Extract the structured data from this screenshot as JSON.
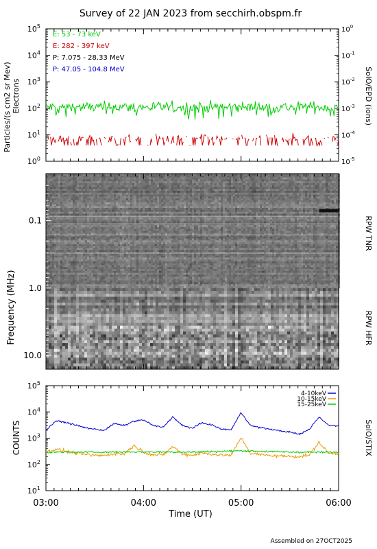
{
  "title": "Survey of 22 JAN 2023 from secchirh.obspm.fr",
  "footer": "Assembled on 27OCT2025",
  "time_axis": {
    "label": "Time (UT)",
    "ticks": [
      "03:00",
      "04:00",
      "05:00",
      "06:00"
    ],
    "range_hours": [
      3,
      6
    ]
  },
  "colors": {
    "green": "#00cc00",
    "red": "#cc0000",
    "black": "#000000",
    "blue": "#0000cc",
    "orange": "#ee9900"
  },
  "chart_data": [
    {
      "type": "line",
      "panel": "epd",
      "ylabel_line1": "Particles/(s cm2 sr Mev)",
      "ylabel_line2": "Electrons",
      "right_label": "SolO/EPD (ions)",
      "y_scale": "log",
      "ylim": [
        1,
        100000
      ],
      "y_ticks": [
        "10",
        "10",
        "10",
        "10",
        "10",
        "10"
      ],
      "y_tick_exponents": [
        "0",
        "1",
        "2",
        "3",
        "4",
        "5"
      ],
      "y2_scale": "log",
      "y2lim": [
        1e-05,
        1
      ],
      "y2_ticks": [
        "10",
        "10",
        "10",
        "10",
        "10",
        "10"
      ],
      "y2_tick_exponents": [
        "-5",
        "-4",
        "-3",
        "-2",
        "-1",
        "0"
      ],
      "legend": [
        {
          "label": "E: 53 - 73 keV",
          "color": "#00cc00"
        },
        {
          "label": "E: 282 - 397 keV",
          "color": "#cc0000"
        },
        {
          "label": "P: 7.075 - 28.33 MeV",
          "color": "#000000"
        },
        {
          "label": "P: 47.05 - 104.8 MeV",
          "color": "#0000cc"
        }
      ],
      "series": [
        {
          "color": "#00cc00",
          "typical": 110,
          "min": 30,
          "max": 350
        },
        {
          "color": "#cc0000",
          "typical": 7,
          "min": 4,
          "max": 18
        }
      ]
    },
    {
      "type": "heatmap",
      "panel": "rpw",
      "ylabel": "Frequency (MHz)",
      "y_scale": "log",
      "y_direction": "increasing-downward",
      "ylim": [
        0.02,
        16
      ],
      "y_ticks": [
        "0.1",
        "1.0",
        "10.0"
      ],
      "right_labels": [
        "RPW TNR",
        "RPW HFR"
      ],
      "boundary_mhz": 1.0
    },
    {
      "type": "line",
      "panel": "stix",
      "ylabel": "COUNTS",
      "right_label": "SolO/STIX",
      "y_scale": "log",
      "ylim": [
        10,
        100000
      ],
      "y_ticks": [
        "10",
        "10",
        "10",
        "10",
        "10"
      ],
      "y_tick_exponents": [
        "1",
        "2",
        "3",
        "4",
        "5"
      ],
      "legend": [
        {
          "label": "4-10keV",
          "color": "#0000cc"
        },
        {
          "label": "10-15keV",
          "color": "#ee9900"
        },
        {
          "label": "15-25keV",
          "color": "#00cc00"
        }
      ],
      "series": [
        {
          "name": "4-10keV",
          "color": "#0000cc",
          "x": [
            3.0,
            3.1,
            3.2,
            3.3,
            3.4,
            3.5,
            3.6,
            3.7,
            3.8,
            3.9,
            4.0,
            4.1,
            4.2,
            4.3,
            4.4,
            4.5,
            4.6,
            4.7,
            4.8,
            4.9,
            5.0,
            5.1,
            5.2,
            5.3,
            5.4,
            5.5,
            5.6,
            5.7,
            5.8,
            5.9,
            6.0
          ],
          "values": [
            2000,
            4500,
            4000,
            3200,
            2500,
            2200,
            2000,
            3600,
            3000,
            4400,
            5000,
            3000,
            2600,
            6500,
            3000,
            2400,
            3800,
            3200,
            2200,
            2100,
            9500,
            3000,
            2500,
            2200,
            1900,
            1700,
            1400,
            2200,
            6500,
            3000,
            3000
          ]
        },
        {
          "name": "10-15keV",
          "color": "#ee9900",
          "x": [
            3.0,
            3.1,
            3.2,
            3.3,
            3.4,
            3.5,
            3.6,
            3.7,
            3.8,
            3.9,
            4.0,
            4.1,
            4.2,
            4.3,
            4.4,
            4.5,
            4.6,
            4.7,
            4.8,
            4.9,
            5.0,
            5.1,
            5.2,
            5.3,
            5.4,
            5.5,
            5.6,
            5.7,
            5.8,
            5.9,
            6.0
          ],
          "values": [
            290,
            380,
            320,
            270,
            240,
            220,
            220,
            260,
            250,
            520,
            300,
            230,
            230,
            480,
            250,
            225,
            270,
            250,
            225,
            225,
            1050,
            260,
            235,
            220,
            210,
            205,
            200,
            230,
            700,
            260,
            260
          ]
        },
        {
          "name": "15-25keV",
          "color": "#00cc00",
          "x": [
            3.0,
            3.5,
            4.0,
            4.5,
            5.0,
            5.5,
            6.0
          ],
          "values": [
            290,
            295,
            300,
            295,
            330,
            295,
            290
          ]
        }
      ]
    }
  ]
}
